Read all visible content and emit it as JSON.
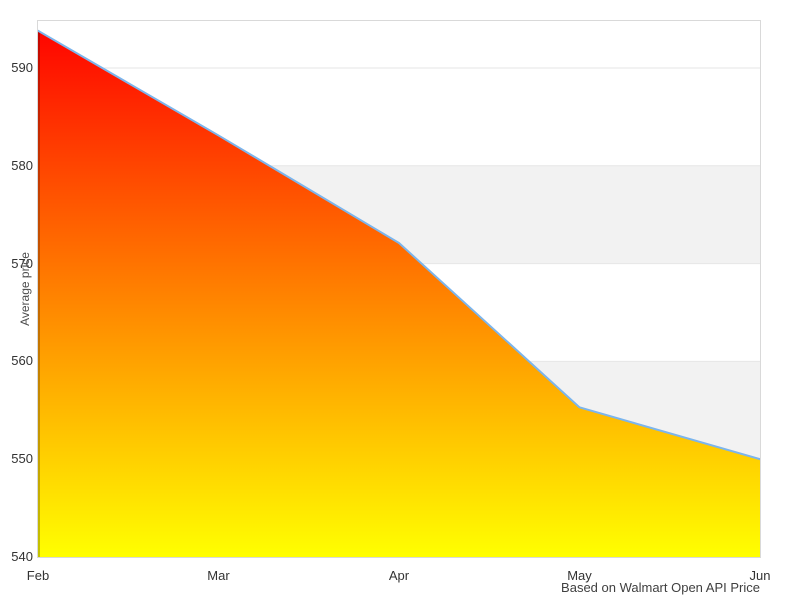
{
  "chart": {
    "colors": {
      "line": "#7cb5ec",
      "gradient_top": "#ff0000",
      "gradient_bottom": "#ffff00",
      "edge_top": "#bf0000",
      "edge_bottom": "#bfbf00",
      "gridline": "#e6e6e6",
      "band": "#f2f2f2",
      "border": "#d9d9d9",
      "label_color": "#333333"
    }
  },
  "chart_data": {
    "type": "area",
    "categories": [
      "Feb",
      "Mar",
      "Apr",
      "May",
      "Jun"
    ],
    "values": [
      593.8,
      583.1,
      572.1,
      555.3,
      550.0
    ],
    "series_name": "Average price",
    "title": "",
    "xlabel": "",
    "ylabel": "Average price",
    "ylim": [
      540,
      594.8
    ],
    "yticks": [
      540,
      550,
      560,
      570,
      580,
      590
    ],
    "alternate_band_ranges": [
      [
        570,
        580
      ],
      [
        550,
        560
      ]
    ],
    "grid": true,
    "legend": false,
    "gradient": "red-to-yellow vertical",
    "caption": "Based on Walmart Open API Price"
  }
}
